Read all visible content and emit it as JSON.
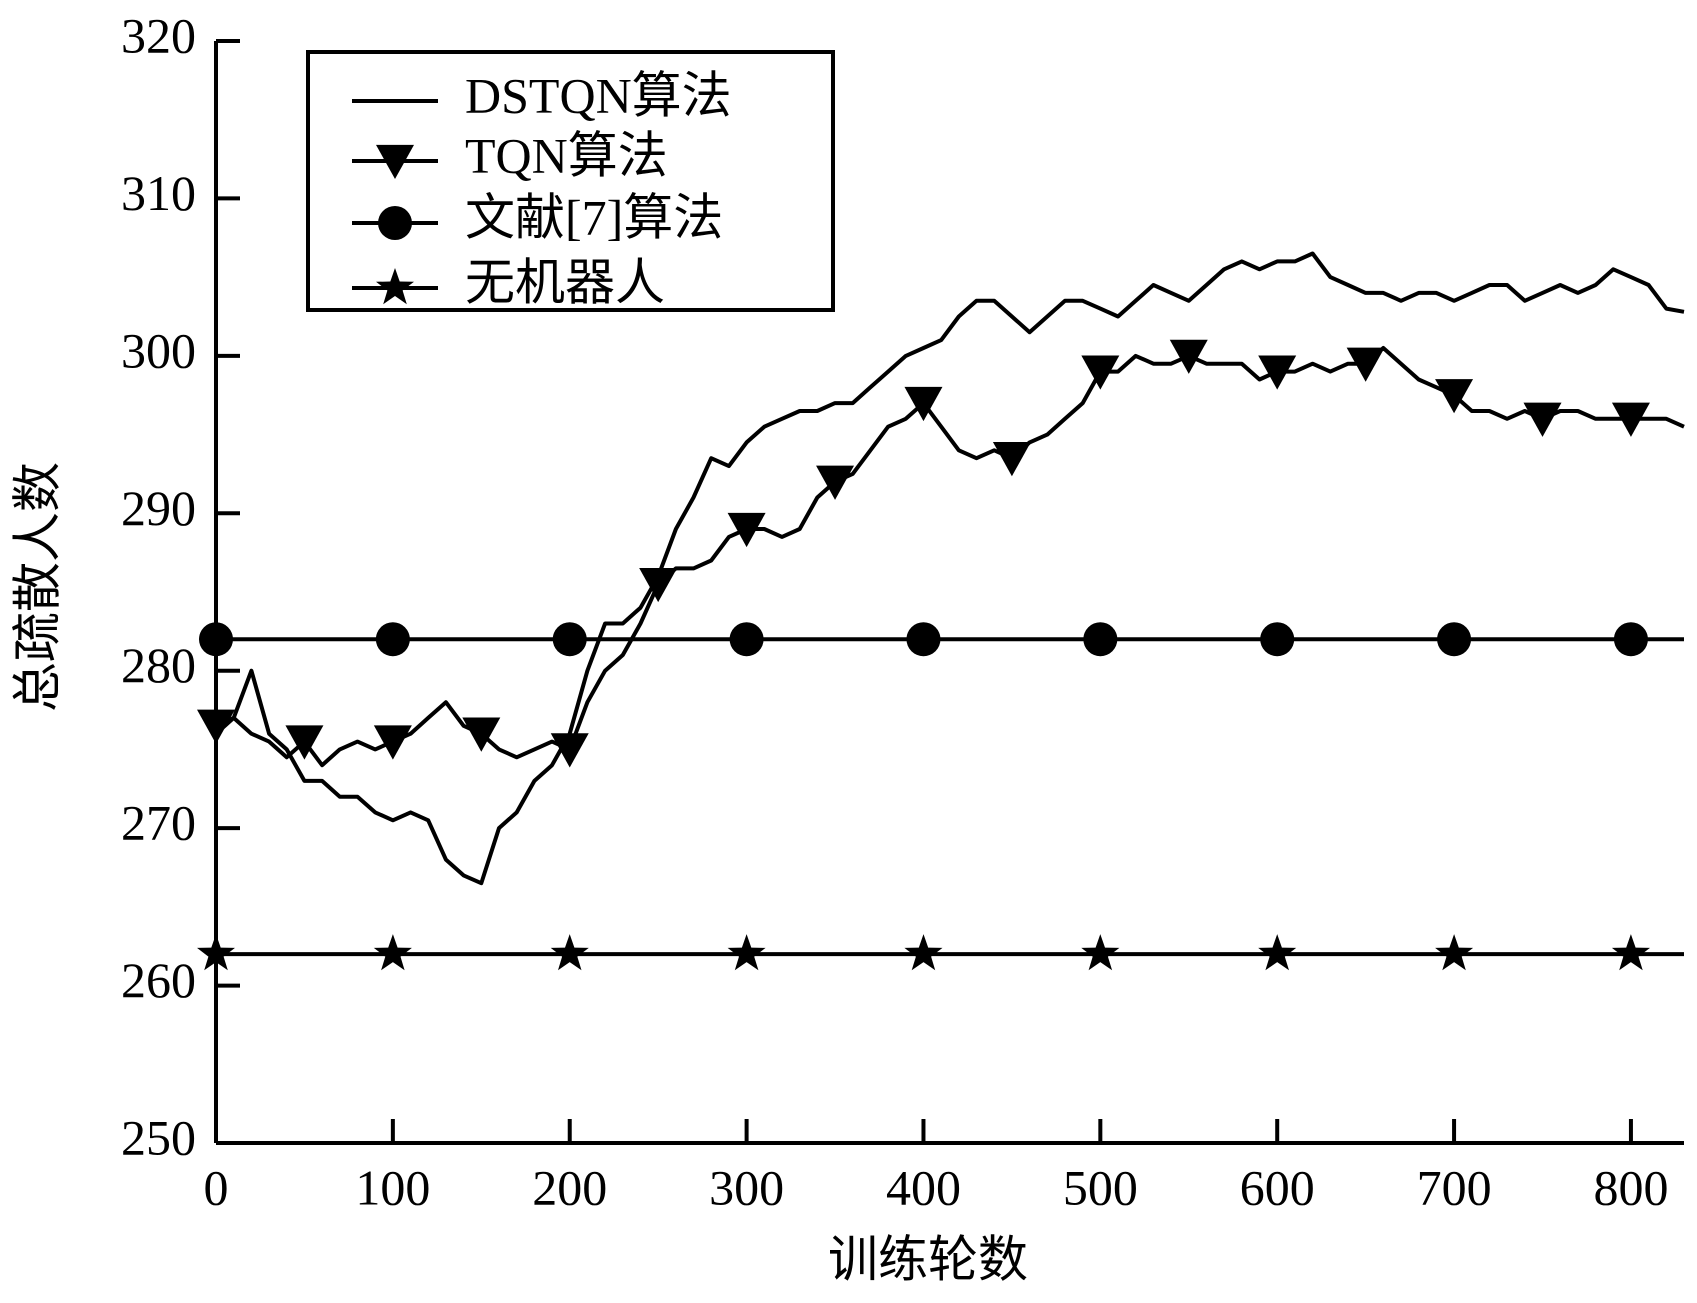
{
  "chart_data": {
    "type": "line",
    "x_label": "训练轮数",
    "y_label": "总疏散人数",
    "x": [
      0,
      10,
      20,
      30,
      40,
      50,
      60,
      70,
      80,
      90,
      100,
      110,
      120,
      130,
      140,
      150,
      160,
      170,
      180,
      190,
      200,
      210,
      220,
      230,
      240,
      250,
      260,
      270,
      280,
      290,
      300,
      310,
      320,
      330,
      340,
      350,
      360,
      370,
      380,
      390,
      400,
      410,
      420,
      430,
      440,
      450,
      460,
      470,
      480,
      490,
      500,
      510,
      520,
      530,
      540,
      550,
      560,
      570,
      580,
      590,
      600,
      610,
      620,
      630,
      640,
      650,
      660,
      670,
      680,
      690,
      700,
      710,
      720,
      730,
      740,
      750,
      760,
      770,
      780,
      790,
      800,
      810,
      820,
      830
    ],
    "xlim": [
      0,
      830
    ],
    "xticks": [
      0,
      100,
      200,
      300,
      400,
      500,
      600,
      700,
      800
    ],
    "ylim": [
      250,
      320
    ],
    "yticks": [
      250,
      260,
      270,
      280,
      290,
      300,
      310,
      320
    ],
    "legend": "upper left",
    "series": [
      {
        "name": "DSTQN算法",
        "color": "#000000",
        "marker": "none",
        "values": [
          276,
          277,
          280,
          276,
          275,
          273,
          273,
          272,
          272,
          271,
          270.5,
          271,
          270.5,
          268,
          267,
          266.5,
          270,
          271,
          273,
          274,
          276,
          280,
          283,
          283,
          284,
          286,
          289,
          291,
          293.5,
          293,
          294.5,
          295.5,
          296,
          296.5,
          296.5,
          297,
          297,
          298,
          299,
          300,
          300.5,
          301,
          302.5,
          303.5,
          303.5,
          302.5,
          301.5,
          302.5,
          303.5,
          303.5,
          303,
          302.5,
          303.5,
          304.5,
          304,
          303.5,
          304.5,
          305.5,
          306,
          305.5,
          306,
          306,
          306.5,
          305,
          304.5,
          304,
          304,
          303.5,
          304,
          304,
          303.5,
          304,
          304.5,
          304.5,
          303.5,
          304,
          304.5,
          304,
          304.5,
          305.5,
          305,
          304.5,
          303,
          302.8
        ]
      },
      {
        "name": "TQN算法",
        "color": "#000000",
        "marker": "triangle-down",
        "marker_every": 5,
        "values": [
          276.5,
          277,
          276,
          275.5,
          274.5,
          275.5,
          274,
          275,
          275.5,
          275,
          275.5,
          276,
          277,
          278,
          276.5,
          276,
          275,
          274.5,
          275,
          275.5,
          275,
          278,
          280,
          281,
          283,
          285.5,
          286.5,
          286.5,
          287,
          288.5,
          289,
          289,
          288.5,
          289,
          291,
          292,
          292.5,
          294,
          295.5,
          296,
          297,
          295.5,
          294,
          293.5,
          294,
          293.5,
          294.5,
          295,
          296,
          297,
          299,
          299,
          300,
          299.5,
          299.5,
          300,
          299.5,
          299.5,
          299.5,
          298.5,
          299,
          299,
          299.5,
          299,
          299.5,
          299.5,
          300.5,
          299.5,
          298.5,
          298,
          297.5,
          296.5,
          296.5,
          296,
          296.5,
          296,
          296.5,
          296.5,
          296,
          296,
          296,
          296,
          296,
          295.5
        ]
      },
      {
        "name": "文献[7]算法",
        "color": "#000000",
        "marker": "circle",
        "marker_every": 10,
        "values": [
          282,
          282,
          282,
          282,
          282,
          282,
          282,
          282,
          282,
          282,
          282,
          282,
          282,
          282,
          282,
          282,
          282,
          282,
          282,
          282,
          282,
          282,
          282,
          282,
          282,
          282,
          282,
          282,
          282,
          282,
          282,
          282,
          282,
          282,
          282,
          282,
          282,
          282,
          282,
          282,
          282,
          282,
          282,
          282,
          282,
          282,
          282,
          282,
          282,
          282,
          282,
          282,
          282,
          282,
          282,
          282,
          282,
          282,
          282,
          282,
          282,
          282,
          282,
          282,
          282,
          282,
          282,
          282,
          282,
          282,
          282,
          282,
          282,
          282,
          282,
          282,
          282,
          282,
          282,
          282,
          282,
          282,
          282,
          282
        ]
      },
      {
        "name": "无机器人",
        "color": "#000000",
        "marker": "star",
        "marker_every": 10,
        "values": [
          262,
          262,
          262,
          262,
          262,
          262,
          262,
          262,
          262,
          262,
          262,
          262,
          262,
          262,
          262,
          262,
          262,
          262,
          262,
          262,
          262,
          262,
          262,
          262,
          262,
          262,
          262,
          262,
          262,
          262,
          262,
          262,
          262,
          262,
          262,
          262,
          262,
          262,
          262,
          262,
          262,
          262,
          262,
          262,
          262,
          262,
          262,
          262,
          262,
          262,
          262,
          262,
          262,
          262,
          262,
          262,
          262,
          262,
          262,
          262,
          262,
          262,
          262,
          262,
          262,
          262,
          262,
          262,
          262,
          262,
          262,
          262,
          262,
          262,
          262,
          262,
          262,
          262,
          262,
          262,
          262,
          262,
          262,
          262
        ]
      }
    ]
  }
}
